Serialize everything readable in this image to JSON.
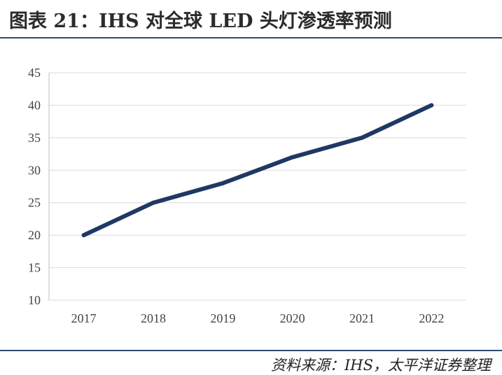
{
  "header": {
    "title": "图表 21：IHS 对全球 LED 头灯渗透率预测"
  },
  "footer": {
    "source": "资料来源：IHS，太平洋证券整理"
  },
  "chart_data": {
    "type": "line",
    "title": "",
    "xlabel": "",
    "ylabel": "",
    "categories": [
      "2017",
      "2018",
      "2019",
      "2020",
      "2021",
      "2022"
    ],
    "series": [
      {
        "values": [
          20,
          25,
          28,
          32,
          35,
          40
        ]
      }
    ],
    "ylim": [
      10,
      45
    ],
    "yticks": [
      10,
      15,
      20,
      25,
      30,
      35,
      40,
      45
    ],
    "grid": "horizontal",
    "legend": "none",
    "colors": {
      "line": "#1f3864",
      "grid": "#d9d9d9",
      "axis": "#bfbfbf",
      "rule": "#2f4a73"
    }
  }
}
